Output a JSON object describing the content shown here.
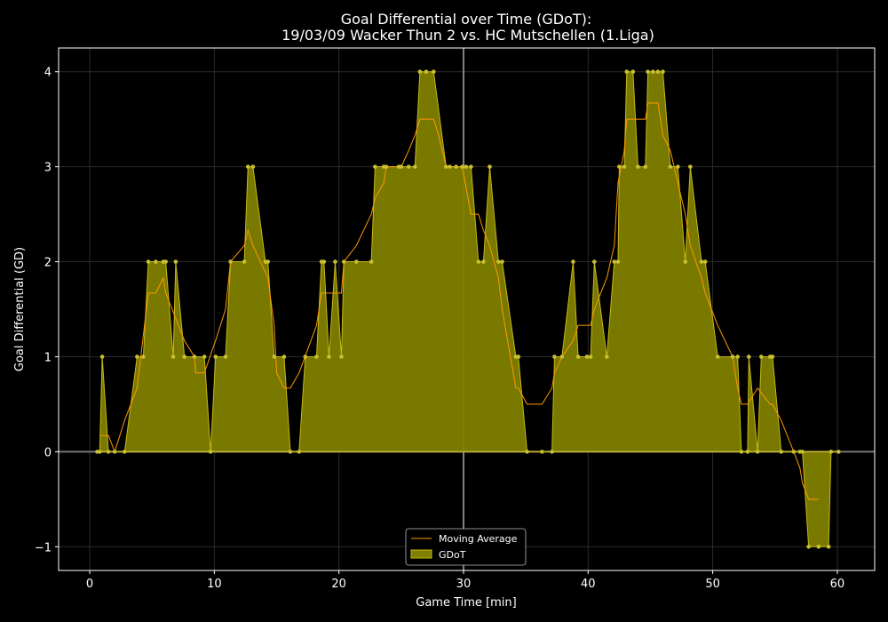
{
  "chart_data": {
    "type": "area",
    "title_line1": "Goal Differential over Time (GDoT):",
    "title_line2": "19/03/09 Wacker Thun 2  vs.  HC Mutschellen (1.Liga)",
    "xlabel": "Game Time [min]",
    "ylabel": "Goal Differential (GD)",
    "xlim": [
      -2.5,
      63
    ],
    "ylim": [
      -1.25,
      4.25
    ],
    "x_ticks": [
      0,
      10,
      20,
      30,
      40,
      50,
      60
    ],
    "y_ticks": [
      -1,
      0,
      1,
      2,
      3,
      4
    ],
    "x_tick_labels": [
      "0",
      "10",
      "20",
      "30",
      "40",
      "50",
      "60"
    ],
    "y_tick_labels": [
      "−1",
      "0",
      "1",
      "2",
      "3",
      "4"
    ],
    "grid": true,
    "legend_position": "lower-center",
    "halftime_line_x": 30,
    "colors": {
      "fill": "#808000",
      "line": "#c8b818",
      "marker": "#c8c030",
      "moving_average": "#ff9900",
      "halftime": "#808080",
      "zero_line": "#c8b830"
    },
    "series": [
      {
        "name": "GDoT",
        "points": [
          [
            0.6,
            0
          ],
          [
            0.8,
            0
          ],
          [
            1.0,
            1
          ],
          [
            1.5,
            0
          ],
          [
            2.0,
            0
          ],
          [
            2.8,
            0
          ],
          [
            3.8,
            1
          ],
          [
            4.3,
            1
          ],
          [
            4.7,
            2
          ],
          [
            5.3,
            2
          ],
          [
            5.9,
            2
          ],
          [
            6.1,
            2
          ],
          [
            6.7,
            1
          ],
          [
            6.9,
            2
          ],
          [
            7.6,
            1
          ],
          [
            8.4,
            1
          ],
          [
            9.2,
            1
          ],
          [
            9.7,
            0
          ],
          [
            10.1,
            1
          ],
          [
            10.9,
            1
          ],
          [
            11.3,
            2
          ],
          [
            12.4,
            2
          ],
          [
            12.7,
            3
          ],
          [
            13.1,
            3
          ],
          [
            14.1,
            2
          ],
          [
            14.3,
            2
          ],
          [
            14.8,
            1
          ],
          [
            15.6,
            1
          ],
          [
            16.1,
            0
          ],
          [
            16.8,
            0
          ],
          [
            17.3,
            1
          ],
          [
            18.2,
            1
          ],
          [
            18.6,
            2
          ],
          [
            18.8,
            2
          ],
          [
            19.2,
            1
          ],
          [
            19.7,
            2
          ],
          [
            20.2,
            1
          ],
          [
            20.4,
            2
          ],
          [
            21.4,
            2
          ],
          [
            22.6,
            2
          ],
          [
            22.9,
            3
          ],
          [
            23.6,
            3
          ],
          [
            23.8,
            3
          ],
          [
            24.8,
            3
          ],
          [
            25.0,
            3
          ],
          [
            25.6,
            3
          ],
          [
            26.1,
            3
          ],
          [
            26.5,
            4
          ],
          [
            27.0,
            4
          ],
          [
            27.6,
            4
          ],
          [
            28.6,
            3
          ],
          [
            28.9,
            3
          ],
          [
            29.4,
            3
          ],
          [
            29.9,
            3
          ],
          [
            30.2,
            3
          ],
          [
            30.6,
            3
          ],
          [
            31.2,
            2
          ],
          [
            31.6,
            2
          ],
          [
            32.1,
            3
          ],
          [
            32.8,
            2
          ],
          [
            33.1,
            2
          ],
          [
            34.2,
            1
          ],
          [
            34.4,
            1
          ],
          [
            35.1,
            0
          ],
          [
            36.3,
            0
          ],
          [
            37.1,
            0
          ],
          [
            37.3,
            1
          ],
          [
            37.9,
            1
          ],
          [
            38.8,
            2
          ],
          [
            39.2,
            1
          ],
          [
            39.9,
            1
          ],
          [
            40.2,
            1
          ],
          [
            40.5,
            2
          ],
          [
            41.5,
            1
          ],
          [
            42.1,
            2
          ],
          [
            42.4,
            2
          ],
          [
            42.5,
            3
          ],
          [
            42.9,
            3
          ],
          [
            43.1,
            4
          ],
          [
            43.6,
            4
          ],
          [
            44.0,
            3
          ],
          [
            44.6,
            3
          ],
          [
            44.8,
            4
          ],
          [
            45.2,
            4
          ],
          [
            45.6,
            4
          ],
          [
            46.0,
            4
          ],
          [
            46.6,
            3
          ],
          [
            47.2,
            3
          ],
          [
            47.8,
            2
          ],
          [
            48.2,
            3
          ],
          [
            49.1,
            2
          ],
          [
            49.4,
            2
          ],
          [
            50.4,
            1
          ],
          [
            51.6,
            1
          ],
          [
            52.0,
            1
          ],
          [
            52.3,
            0
          ],
          [
            52.8,
            0
          ],
          [
            52.9,
            1
          ],
          [
            53.6,
            0
          ],
          [
            53.9,
            1
          ],
          [
            54.6,
            1
          ],
          [
            54.8,
            1
          ],
          [
            55.5,
            0
          ],
          [
            56.5,
            0
          ],
          [
            57.0,
            0
          ],
          [
            57.2,
            0
          ],
          [
            57.7,
            -1
          ],
          [
            58.5,
            -1
          ],
          [
            59.3,
            -1
          ],
          [
            59.5,
            0
          ],
          [
            60.1,
            0
          ]
        ]
      },
      {
        "name": "Moving Average",
        "points": [
          [
            0.8,
            0.17
          ],
          [
            1.5,
            0.17
          ],
          [
            2.0,
            0.0
          ],
          [
            2.8,
            0.33
          ],
          [
            3.8,
            0.67
          ],
          [
            4.7,
            1.67
          ],
          [
            5.3,
            1.67
          ],
          [
            5.9,
            1.83
          ],
          [
            6.1,
            1.67
          ],
          [
            7.6,
            1.17
          ],
          [
            8.4,
            1.0
          ],
          [
            8.5,
            0.83
          ],
          [
            9.2,
            0.83
          ],
          [
            10.1,
            1.17
          ],
          [
            10.9,
            1.5
          ],
          [
            11.3,
            2.0
          ],
          [
            12.4,
            2.17
          ],
          [
            12.7,
            2.33
          ],
          [
            13.1,
            2.17
          ],
          [
            14.3,
            1.83
          ],
          [
            14.8,
            1.33
          ],
          [
            15.0,
            0.83
          ],
          [
            15.6,
            0.67
          ],
          [
            16.1,
            0.67
          ],
          [
            16.8,
            0.83
          ],
          [
            18.2,
            1.33
          ],
          [
            18.6,
            1.67
          ],
          [
            19.2,
            1.67
          ],
          [
            19.7,
            1.67
          ],
          [
            20.2,
            1.67
          ],
          [
            20.4,
            2.0
          ],
          [
            21.4,
            2.17
          ],
          [
            22.6,
            2.5
          ],
          [
            22.9,
            2.67
          ],
          [
            23.6,
            2.83
          ],
          [
            23.8,
            3.0
          ],
          [
            25.0,
            3.0
          ],
          [
            25.6,
            3.17
          ],
          [
            26.1,
            3.33
          ],
          [
            26.5,
            3.5
          ],
          [
            27.6,
            3.5
          ],
          [
            28.0,
            3.33
          ],
          [
            28.6,
            3.0
          ],
          [
            29.4,
            3.0
          ],
          [
            29.9,
            3.0
          ],
          [
            30.6,
            2.5
          ],
          [
            31.2,
            2.5
          ],
          [
            31.6,
            2.33
          ],
          [
            32.1,
            2.17
          ],
          [
            32.8,
            1.83
          ],
          [
            33.1,
            1.5
          ],
          [
            34.2,
            0.67
          ],
          [
            34.4,
            0.67
          ],
          [
            35.1,
            0.5
          ],
          [
            36.3,
            0.5
          ],
          [
            37.1,
            0.67
          ],
          [
            37.3,
            0.83
          ],
          [
            37.9,
            1.0
          ],
          [
            38.8,
            1.17
          ],
          [
            39.2,
            1.33
          ],
          [
            40.2,
            1.33
          ],
          [
            40.5,
            1.5
          ],
          [
            41.5,
            1.83
          ],
          [
            42.1,
            2.17
          ],
          [
            42.4,
            2.83
          ],
          [
            42.9,
            3.17
          ],
          [
            43.1,
            3.5
          ],
          [
            44.6,
            3.5
          ],
          [
            44.8,
            3.67
          ],
          [
            45.6,
            3.67
          ],
          [
            46.0,
            3.33
          ],
          [
            46.6,
            3.17
          ],
          [
            47.2,
            2.83
          ],
          [
            47.8,
            2.5
          ],
          [
            48.2,
            2.17
          ],
          [
            49.1,
            1.83
          ],
          [
            49.4,
            1.67
          ],
          [
            50.4,
            1.33
          ],
          [
            51.6,
            1.0
          ],
          [
            52.0,
            0.67
          ],
          [
            52.3,
            0.5
          ],
          [
            52.8,
            0.5
          ],
          [
            53.6,
            0.67
          ],
          [
            54.6,
            0.5
          ],
          [
            54.8,
            0.5
          ],
          [
            55.5,
            0.33
          ],
          [
            56.5,
            0.0
          ],
          [
            57.0,
            -0.17
          ],
          [
            57.2,
            -0.33
          ],
          [
            57.7,
            -0.5
          ],
          [
            58.5,
            -0.5
          ]
        ]
      }
    ]
  }
}
